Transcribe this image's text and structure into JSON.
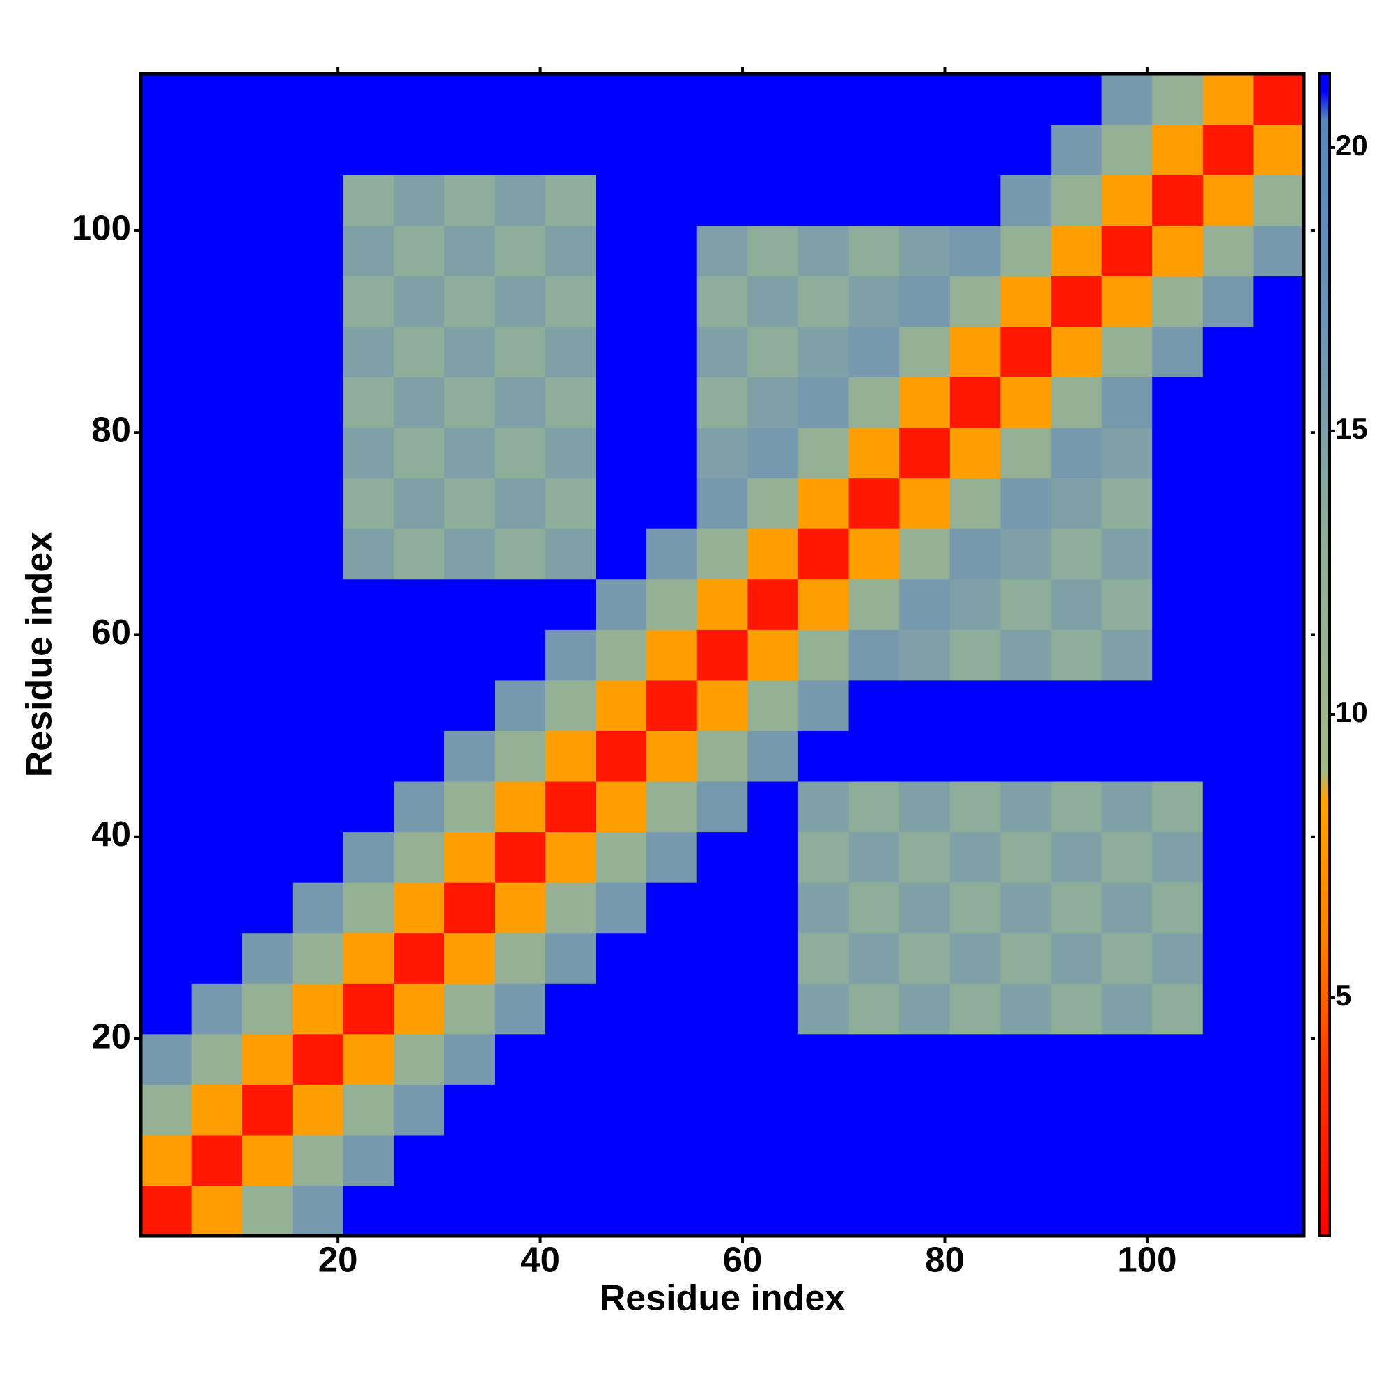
{
  "chart_data": {
    "type": "heatmap",
    "xlabel": "Residue index",
    "ylabel": "Residue index",
    "x": [
      3,
      8,
      13,
      18,
      23,
      28,
      33,
      38,
      43,
      48,
      53,
      58,
      63,
      68,
      73,
      78,
      83,
      88,
      93,
      98,
      103,
      108,
      113
    ],
    "y": [
      3,
      8,
      13,
      18,
      23,
      28,
      33,
      38,
      43,
      48,
      53,
      58,
      63,
      68,
      73,
      78,
      83,
      88,
      93,
      98,
      103,
      108,
      113
    ],
    "values": [
      [
        2,
        8,
        12,
        16,
        21,
        21,
        21,
        21,
        21,
        21,
        21,
        21,
        21,
        21,
        21,
        21,
        21,
        21,
        21,
        21,
        21,
        21,
        21
      ],
      [
        8,
        2,
        8,
        12,
        16,
        21,
        21,
        21,
        21,
        21,
        21,
        21,
        21,
        21,
        21,
        21,
        21,
        21,
        21,
        21,
        21,
        21,
        21
      ],
      [
        12,
        8,
        2,
        8,
        12,
        16,
        21,
        21,
        21,
        21,
        21,
        21,
        21,
        21,
        21,
        21,
        21,
        21,
        21,
        21,
        21,
        21,
        21
      ],
      [
        16,
        12,
        8,
        2,
        8,
        12,
        16,
        21,
        21,
        21,
        21,
        21,
        21,
        21,
        21,
        21,
        21,
        21,
        21,
        21,
        21,
        21,
        21
      ],
      [
        21,
        16,
        12,
        8,
        2,
        8,
        12,
        16,
        21,
        21,
        21,
        21,
        21,
        15,
        13,
        15,
        13,
        15,
        13,
        15,
        13,
        21,
        21
      ],
      [
        21,
        21,
        16,
        12,
        8,
        2,
        8,
        12,
        16,
        21,
        21,
        21,
        21,
        13,
        15,
        13,
        15,
        13,
        15,
        13,
        15,
        21,
        21
      ],
      [
        21,
        21,
        21,
        16,
        12,
        8,
        2,
        8,
        12,
        16,
        21,
        21,
        21,
        15,
        13,
        15,
        13,
        15,
        13,
        15,
        13,
        21,
        21
      ],
      [
        21,
        21,
        21,
        21,
        16,
        12,
        8,
        2,
        8,
        12,
        16,
        21,
        21,
        13,
        15,
        13,
        15,
        13,
        15,
        13,
        15,
        21,
        21
      ],
      [
        21,
        21,
        21,
        21,
        21,
        16,
        12,
        8,
        2,
        8,
        12,
        16,
        21,
        15,
        13,
        15,
        13,
        15,
        13,
        15,
        13,
        21,
        21
      ],
      [
        21,
        21,
        21,
        21,
        21,
        21,
        16,
        12,
        8,
        2,
        8,
        12,
        16,
        21,
        21,
        21,
        21,
        21,
        21,
        21,
        21,
        21,
        21
      ],
      [
        21,
        21,
        21,
        21,
        21,
        21,
        21,
        16,
        12,
        8,
        2,
        8,
        12,
        16,
        21,
        21,
        21,
        21,
        21,
        21,
        21,
        21,
        21
      ],
      [
        21,
        21,
        21,
        21,
        21,
        21,
        21,
        21,
        16,
        12,
        8,
        2,
        8,
        12,
        16,
        15,
        13,
        15,
        13,
        15,
        21,
        21,
        21
      ],
      [
        21,
        21,
        21,
        21,
        21,
        21,
        21,
        21,
        21,
        16,
        12,
        8,
        2,
        8,
        12,
        16,
        15,
        13,
        15,
        13,
        21,
        21,
        21
      ],
      [
        21,
        21,
        21,
        21,
        15,
        13,
        15,
        13,
        15,
        21,
        16,
        12,
        8,
        2,
        8,
        12,
        16,
        15,
        13,
        15,
        21,
        21,
        21
      ],
      [
        21,
        21,
        21,
        21,
        13,
        15,
        13,
        15,
        13,
        21,
        21,
        16,
        12,
        8,
        2,
        8,
        12,
        16,
        15,
        13,
        21,
        21,
        21
      ],
      [
        21,
        21,
        21,
        21,
        15,
        13,
        15,
        13,
        15,
        21,
        21,
        15,
        16,
        12,
        8,
        2,
        8,
        12,
        16,
        15,
        21,
        21,
        21
      ],
      [
        21,
        21,
        21,
        21,
        13,
        15,
        13,
        15,
        13,
        21,
        21,
        13,
        15,
        16,
        12,
        8,
        2,
        8,
        12,
        16,
        21,
        21,
        21
      ],
      [
        21,
        21,
        21,
        21,
        15,
        13,
        15,
        13,
        15,
        21,
        21,
        15,
        13,
        15,
        16,
        12,
        8,
        2,
        8,
        12,
        16,
        21,
        21
      ],
      [
        21,
        21,
        21,
        21,
        13,
        15,
        13,
        15,
        13,
        21,
        21,
        13,
        15,
        13,
        15,
        16,
        12,
        8,
        2,
        8,
        12,
        16,
        21
      ],
      [
        21,
        21,
        21,
        21,
        15,
        13,
        15,
        13,
        15,
        21,
        21,
        15,
        13,
        15,
        13,
        15,
        16,
        12,
        8,
        2,
        8,
        12,
        16
      ],
      [
        21,
        21,
        21,
        21,
        13,
        15,
        13,
        15,
        13,
        21,
        21,
        21,
        21,
        21,
        21,
        21,
        21,
        16,
        12,
        8,
        2,
        8,
        12
      ],
      [
        21,
        21,
        21,
        21,
        21,
        21,
        21,
        21,
        21,
        21,
        21,
        21,
        21,
        21,
        21,
        21,
        21,
        21,
        16,
        12,
        8,
        2,
        8
      ],
      [
        21,
        21,
        21,
        21,
        21,
        21,
        21,
        21,
        21,
        21,
        21,
        21,
        21,
        21,
        21,
        21,
        21,
        21,
        21,
        16,
        12,
        8,
        2
      ]
    ],
    "xlim": [
      0.5,
      115.5
    ],
    "ylim": [
      0.5,
      115.5
    ],
    "xticks": [
      20,
      40,
      60,
      80,
      100
    ],
    "yticks": [
      20,
      40,
      60,
      80,
      100
    ],
    "clim": [
      0.8,
      21.3
    ],
    "cticks": [
      5,
      10,
      15,
      20
    ],
    "colorscale": [
      [
        0.8,
        "#ff0000"
      ],
      [
        3.5,
        "#ff3300"
      ],
      [
        6,
        "#ff8000"
      ],
      [
        8.5,
        "#ffa500"
      ],
      [
        9,
        "#a3b98a"
      ],
      [
        13,
        "#8fae99"
      ],
      [
        17,
        "#6f92b5"
      ],
      [
        20.5,
        "#5a86b8"
      ],
      [
        21,
        "#0000ff"
      ],
      [
        21.3,
        "#0000ff"
      ]
    ]
  }
}
